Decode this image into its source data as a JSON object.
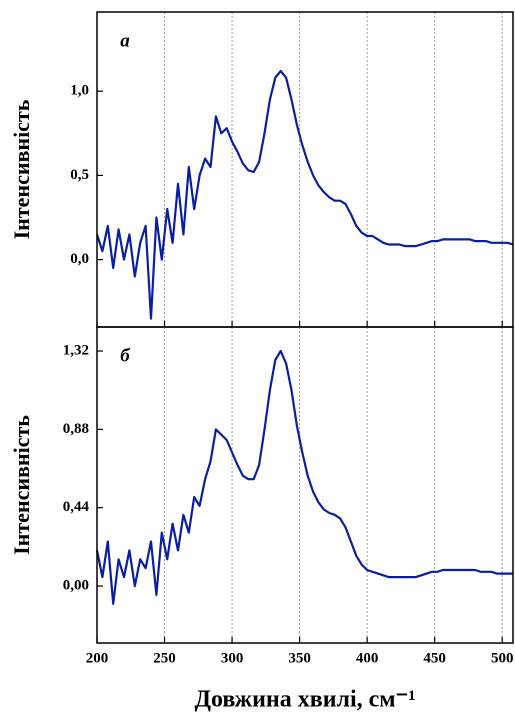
{
  "chart_data": [
    {
      "type": "line",
      "annotation": "a",
      "ylabel": "Інтенсивність",
      "x": [
        200,
        204,
        208,
        212,
        216,
        220,
        224,
        228,
        232,
        236,
        240,
        244,
        248,
        252,
        256,
        260,
        264,
        268,
        272,
        276,
        280,
        284,
        288,
        292,
        296,
        300,
        304,
        308,
        312,
        316,
        320,
        324,
        328,
        332,
        336,
        340,
        344,
        348,
        352,
        356,
        360,
        364,
        368,
        372,
        376,
        380,
        384,
        388,
        392,
        396,
        400,
        404,
        408,
        412,
        416,
        420,
        424,
        428,
        432,
        436,
        440,
        444,
        448,
        452,
        456,
        460,
        464,
        468,
        472,
        476,
        480,
        484,
        488,
        492,
        496,
        500,
        504,
        508
      ],
      "series": [
        {
          "color": "#0a1fa0",
          "values": [
            0.15,
            0.05,
            0.2,
            -0.05,
            0.18,
            0.0,
            0.15,
            -0.1,
            0.1,
            0.2,
            -0.35,
            0.25,
            0.0,
            0.3,
            0.1,
            0.45,
            0.15,
            0.55,
            0.3,
            0.5,
            0.6,
            0.55,
            0.85,
            0.75,
            0.78,
            0.7,
            0.64,
            0.57,
            0.53,
            0.52,
            0.58,
            0.75,
            0.95,
            1.08,
            1.12,
            1.08,
            0.95,
            0.8,
            0.68,
            0.58,
            0.5,
            0.44,
            0.4,
            0.37,
            0.35,
            0.35,
            0.33,
            0.27,
            0.2,
            0.16,
            0.14,
            0.14,
            0.12,
            0.1,
            0.09,
            0.09,
            0.09,
            0.08,
            0.08,
            0.08,
            0.09,
            0.1,
            0.11,
            0.11,
            0.12,
            0.12,
            0.12,
            0.12,
            0.12,
            0.12,
            0.11,
            0.11,
            0.11,
            0.1,
            0.1,
            0.1,
            0.1,
            0.09
          ]
        }
      ],
      "xlim": [
        200,
        508
      ],
      "xticks": [
        200,
        250,
        300,
        350,
        400,
        450,
        500
      ],
      "ylim": [
        -0.4,
        1.47
      ],
      "yticks": [
        {
          "value": 0,
          "label": "0,0"
        },
        {
          "value": 0.5,
          "label": "0,5"
        },
        {
          "value": 1,
          "label": "1,0"
        }
      ],
      "grid": true
    },
    {
      "type": "line",
      "annotation": "б",
      "ylabel": "Інтенсивність",
      "xlabel": "Довжина хвилі, см⁻¹",
      "x": [
        200,
        204,
        208,
        212,
        216,
        220,
        224,
        228,
        232,
        236,
        240,
        244,
        248,
        252,
        256,
        260,
        264,
        268,
        272,
        276,
        280,
        284,
        288,
        292,
        296,
        300,
        304,
        308,
        312,
        316,
        320,
        324,
        328,
        332,
        336,
        340,
        344,
        348,
        352,
        356,
        360,
        364,
        368,
        372,
        376,
        380,
        384,
        388,
        392,
        396,
        400,
        404,
        408,
        412,
        416,
        420,
        424,
        428,
        432,
        436,
        440,
        444,
        448,
        452,
        456,
        460,
        464,
        468,
        472,
        476,
        480,
        484,
        488,
        492,
        496,
        500,
        504,
        508
      ],
      "series": [
        {
          "color": "#0a1fa0",
          "values": [
            0.2,
            0.05,
            0.25,
            -0.1,
            0.15,
            0.05,
            0.2,
            0.0,
            0.15,
            0.1,
            0.25,
            -0.05,
            0.3,
            0.15,
            0.35,
            0.2,
            0.4,
            0.3,
            0.5,
            0.45,
            0.6,
            0.7,
            0.88,
            0.85,
            0.82,
            0.75,
            0.68,
            0.62,
            0.6,
            0.6,
            0.68,
            0.88,
            1.1,
            1.27,
            1.32,
            1.25,
            1.1,
            0.9,
            0.75,
            0.62,
            0.53,
            0.47,
            0.43,
            0.41,
            0.4,
            0.38,
            0.33,
            0.25,
            0.17,
            0.12,
            0.09,
            0.08,
            0.07,
            0.06,
            0.05,
            0.05,
            0.05,
            0.05,
            0.05,
            0.05,
            0.06,
            0.07,
            0.08,
            0.08,
            0.09,
            0.09,
            0.09,
            0.09,
            0.09,
            0.09,
            0.09,
            0.08,
            0.08,
            0.08,
            0.07,
            0.07,
            0.07,
            0.07
          ]
        }
      ],
      "xlim": [
        200,
        508
      ],
      "xticks": [
        200,
        250,
        300,
        350,
        400,
        450,
        500
      ],
      "ylim": [
        -0.32,
        1.455
      ],
      "yticks": [
        {
          "value": 0,
          "label": "0,00"
        },
        {
          "value": 0.44,
          "label": "0,44"
        },
        {
          "value": 0.88,
          "label": "0,88"
        },
        {
          "value": 1.32,
          "label": "1,32"
        }
      ],
      "grid": true
    }
  ]
}
